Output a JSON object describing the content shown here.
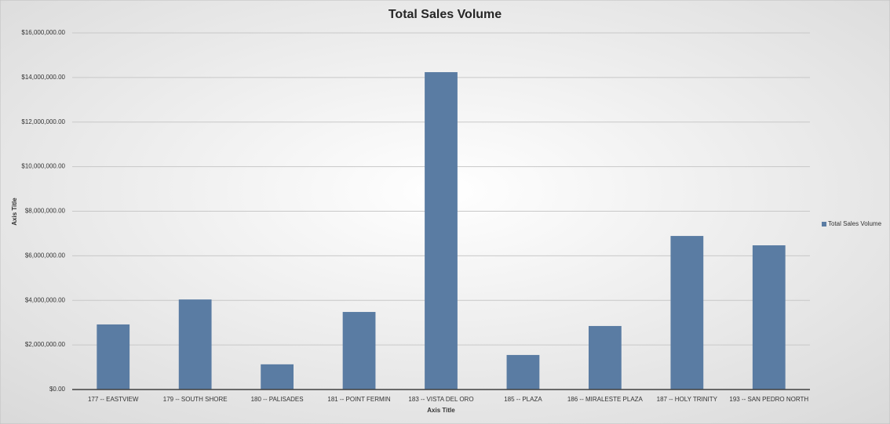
{
  "chart_data": {
    "type": "bar",
    "title": "Total Sales Volume",
    "x_label": "Axis Title",
    "y_label": "Axis Title",
    "categories": [
      "177 -- EASTVIEW",
      "179 -- SOUTH SHORE",
      "180 -- PALISADES",
      "181 -- POINT FERMIN",
      "183 -- VISTA DEL ORO",
      "185 -- PLAZA",
      "186 -- MIRALESTE PLAZA",
      "187 -- HOLY TRINITY",
      "193 -- SAN PEDRO NORTH"
    ],
    "series": [
      {
        "name": "Total Sales Volume",
        "color": "#5a7ca3",
        "values": [
          2920000,
          4040000,
          1130000,
          3480000,
          14240000,
          1550000,
          2850000,
          6890000,
          6470000
        ]
      }
    ],
    "ylim": [
      0,
      16000000
    ],
    "yticks": [
      {
        "value": 0,
        "label": "$0.00"
      },
      {
        "value": 2000000,
        "label": "$2,000,000.00"
      },
      {
        "value": 4000000,
        "label": "$4,000,000.00"
      },
      {
        "value": 6000000,
        "label": "$6,000,000.00"
      },
      {
        "value": 8000000,
        "label": "$8,000,000.00"
      },
      {
        "value": 10000000,
        "label": "$10,000,000.00"
      },
      {
        "value": 12000000,
        "label": "$12,000,000.00"
      },
      {
        "value": 14000000,
        "label": "$14,000,000.00"
      },
      {
        "value": 16000000,
        "label": "$16,000,000.00"
      }
    ],
    "grid": true,
    "legend": "right"
  }
}
